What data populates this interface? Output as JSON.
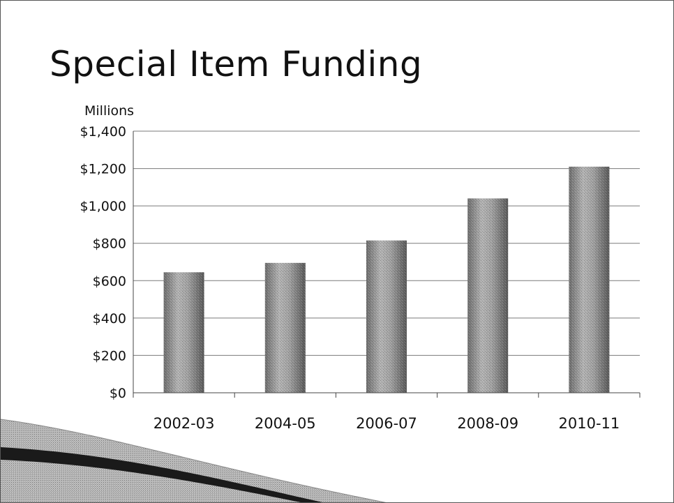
{
  "slide": {
    "title": "Special Item Funding"
  },
  "chart_data": {
    "type": "bar",
    "title": "Special Item Funding",
    "ylabel": "Millions",
    "xlabel": "",
    "categories": [
      "2002-03",
      "2004-05",
      "2006-07",
      "2008-09",
      "2010-11"
    ],
    "values": [
      645,
      695,
      815,
      1040,
      1210
    ],
    "ylim": [
      0,
      1400
    ],
    "yticks": [
      0,
      200,
      400,
      600,
      800,
      1000,
      1200,
      1400
    ],
    "ytick_labels": [
      "$0",
      "$200",
      "$400",
      "$600",
      "$800",
      "$1,000",
      "$1,200",
      "$1,400"
    ],
    "grid": true,
    "legend": "none",
    "bar_color": "#8f8f8f"
  }
}
